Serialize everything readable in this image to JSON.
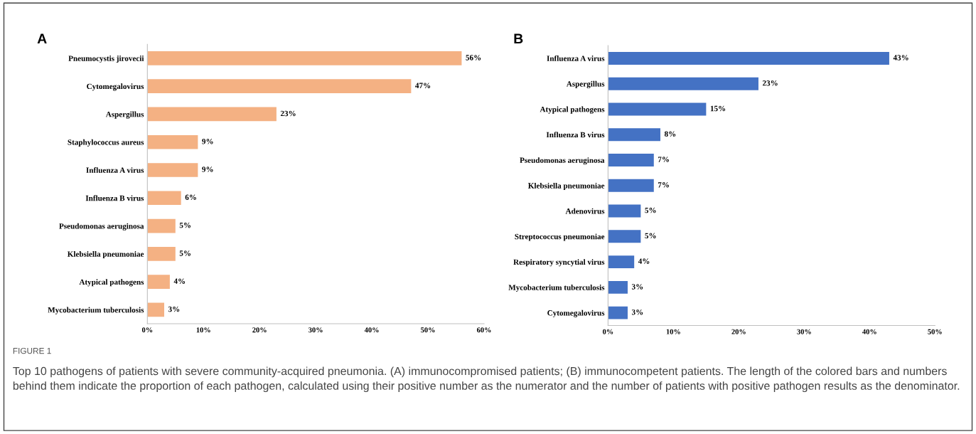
{
  "chart_data": [
    {
      "type": "bar",
      "orientation": "horizontal",
      "title": "A",
      "categories": [
        "Pneumocystis jirovecii",
        "Cytomegalovirus",
        "Aspergillus",
        "Staphylococcus aureus",
        "Influenza A virus",
        "Influenza B virus",
        "Pseudomonas aeruginosa",
        "Klebsiella pneumoniae",
        "Atypical pathogens",
        "Mycobacterium tuberculosis"
      ],
      "values": [
        56,
        47,
        23,
        9,
        9,
        6,
        5,
        5,
        4,
        3
      ],
      "value_labels": [
        "56%",
        "47%",
        "23%",
        "9%",
        "9%",
        "6%",
        "5%",
        "5%",
        "4%",
        "3%"
      ],
      "color": "#f4b183",
      "xlim": [
        0,
        60
      ],
      "xticks": [
        {
          "value": 0,
          "label": "0%"
        },
        {
          "value": 10,
          "label": "10%"
        },
        {
          "value": 20,
          "label": "20%"
        },
        {
          "value": 30,
          "label": "30%"
        },
        {
          "value": 40,
          "label": "40%"
        },
        {
          "value": 50,
          "label": "50%"
        },
        {
          "value": 60,
          "label": "60%"
        }
      ],
      "grid": false,
      "legend": false,
      "annotations": [
        "FIGURE 1",
        "Top 10 pathogens of patients with severe community-acquired pneumonia. (A) immunocompromised patients; (B) immunocompetent patients. The length of the colored bars and numbers behind them indicate the proportion of each pathogen, calculated using their positive number as the numerator and the number of patients with positive pathogen results as the denominator."
      ]
    },
    {
      "type": "bar",
      "orientation": "horizontal",
      "title": "B",
      "categories": [
        "Influenza A virus",
        "Aspergillus",
        "Atypical pathogens",
        "Influenza B virus",
        "Pseudomonas aeruginosa",
        "Klebsiella pneumoniae",
        "Adenovirus",
        "Streptococcus pneumoniae",
        "Respiratory syncytial virus",
        "Mycobacterium tuberculosis",
        "Cytomegalovirus"
      ],
      "values": [
        43,
        23,
        15,
        8,
        7,
        7,
        5,
        5,
        4,
        3,
        3
      ],
      "value_labels": [
        "43%",
        "23%",
        "15%",
        "8%",
        "7%",
        "7%",
        "5%",
        "5%",
        "4%",
        "3%",
        "3%"
      ],
      "color": "#4472c4",
      "xlim": [
        0,
        50
      ],
      "xticks": [
        {
          "value": 0,
          "label": "0%"
        },
        {
          "value": 10,
          "label": "10%"
        },
        {
          "value": 20,
          "label": "20%"
        },
        {
          "value": 30,
          "label": "30%"
        },
        {
          "value": 40,
          "label": "40%"
        },
        {
          "value": 50,
          "label": "50%"
        }
      ],
      "grid": false,
      "legend": false
    }
  ]
}
